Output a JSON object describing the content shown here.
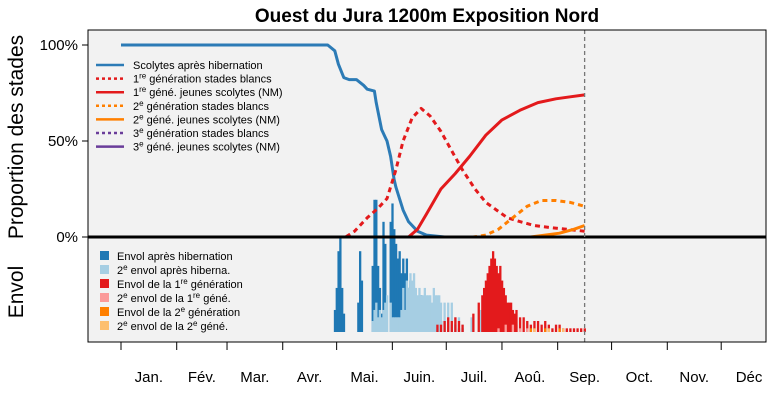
{
  "chart_data": {
    "type": "line",
    "title": "Ouest du Jura 1200m Exposition Nord",
    "ylabel_top": "Proportion des stades",
    "ylabel_bottom": "Envol",
    "yticks": [
      "100%",
      "50%",
      "0%"
    ],
    "ytick_values": [
      100,
      50,
      0
    ],
    "months": [
      "Jan.",
      "Fév.",
      "Mar.",
      "Avr.",
      "Mai.",
      "Juin.",
      "Juil.",
      "Aoû.",
      "Sep.",
      "Oct.",
      "Nov.",
      "Déc"
    ],
    "ylim": [
      0,
      100
    ],
    "xlim_days": [
      0,
      365
    ],
    "current_day": 258,
    "grid": false,
    "legend_top_placement": "top-left",
    "legend_bottom_placement": "bottom-left",
    "legend_lines": [
      {
        "pre": "Scolytes après hibernation",
        "sup": "",
        "post": "",
        "color": "#2c7bb6",
        "dash": "solid"
      },
      {
        "pre": "1",
        "sup": "re",
        "post": " génération stades blancs",
        "color": "#e31a1c",
        "dash": "dotted"
      },
      {
        "pre": "1",
        "sup": "re",
        "post": " géné. jeunes scolytes (NM)",
        "color": "#e31a1c",
        "dash": "solid"
      },
      {
        "pre": "2",
        "sup": "e",
        "post": " génération stades blancs",
        "color": "#ff7f00",
        "dash": "dotted"
      },
      {
        "pre": "2",
        "sup": "e",
        "post": " géné. jeunes scolytes (NM)",
        "color": "#ff7f00",
        "dash": "solid"
      },
      {
        "pre": "3",
        "sup": "e",
        "post": " génération stades blancs",
        "color": "#6a3d9a",
        "dash": "dotted"
      },
      {
        "pre": "3",
        "sup": "e",
        "post": " géné. jeunes scolytes (NM)",
        "color": "#6a3d9a",
        "dash": "solid"
      }
    ],
    "legend_bars": [
      {
        "pre": "Envol après hibernation",
        "sup": "",
        "post": "",
        "color": "#1f78b4"
      },
      {
        "pre": "2",
        "sup": "e",
        "post": " envol après hiberna.",
        "color": "#a6cee3"
      },
      {
        "pre": "Envol de la 1",
        "sup": "re",
        "post": " génération",
        "color": "#e31a1c"
      },
      {
        "pre": "2",
        "sup": "e",
        "post": " envol de la 1",
        "sup2": "re",
        "post2": " géné.",
        "color": "#fb9a99"
      },
      {
        "pre": "Envol de la 2",
        "sup": "e",
        "post": " génération",
        "color": "#ff7f00"
      },
      {
        "pre": "2",
        "sup": "e",
        "post": " envol de la 2",
        "sup2": "e",
        "post2": " géné.",
        "color": "#fdbf6f"
      }
    ],
    "series": [
      {
        "name": "Scolytes après hibernation",
        "color": "#2c7bb6",
        "dash": "solid",
        "x": [
          0,
          115,
          119,
          121,
          124,
          127,
          131,
          135,
          137,
          141,
          142,
          145,
          147,
          148,
          150,
          152,
          153,
          155,
          157,
          160,
          165,
          170,
          180,
          190,
          200
        ],
        "y": [
          100,
          100,
          97,
          90,
          83,
          82,
          82,
          79,
          77,
          76,
          70,
          56,
          52,
          50,
          42,
          30,
          26,
          20,
          14,
          8,
          3,
          1,
          0,
          0,
          0
        ]
      },
      {
        "name": "1re génération stades blancs",
        "color": "#e31a1c",
        "dash": "dotted",
        "x": [
          0,
          125,
          130,
          137,
          143,
          148,
          153,
          157,
          162,
          167,
          172,
          178,
          184,
          190,
          197,
          203,
          209,
          215,
          222,
          230,
          238,
          248,
          258
        ],
        "y": [
          0,
          0,
          3,
          10,
          15,
          20,
          35,
          50,
          62,
          67,
          63,
          55,
          45,
          35,
          25,
          18,
          14,
          10,
          8,
          6,
          5,
          4,
          3
        ]
      },
      {
        "name": "1re géné. jeunes scolytes (NM)",
        "color": "#e31a1c",
        "dash": "solid",
        "x": [
          0,
          160,
          165,
          170,
          178,
          186,
          194,
          203,
          212,
          222,
          232,
          242,
          250,
          258
        ],
        "y": [
          0,
          0,
          4,
          12,
          25,
          33,
          42,
          53,
          61,
          66,
          70,
          72,
          73,
          74
        ]
      },
      {
        "name": "2e génération stades blancs",
        "color": "#ff7f00",
        "dash": "dotted",
        "x": [
          0,
          196,
          203,
          210,
          218,
          226,
          234,
          242,
          250,
          258
        ],
        "y": [
          0,
          0,
          1,
          4,
          10,
          16,
          19,
          19,
          18,
          16
        ]
      },
      {
        "name": "2e géné. jeunes scolytes (NM)",
        "color": "#ff7f00",
        "dash": "solid",
        "x": [
          0,
          228,
          236,
          244,
          252,
          258
        ],
        "y": [
          0,
          0,
          1,
          2,
          4,
          6
        ]
      }
    ],
    "flight_bars": [
      {
        "name": "Envol après hibernation",
        "color": "#1f78b4",
        "x": [
          119,
          120,
          121,
          122,
          123,
          124,
          132,
          133,
          134,
          140,
          141,
          142,
          143,
          144,
          145,
          146,
          147,
          150,
          151,
          152,
          153,
          154,
          155,
          156,
          157,
          158,
          159,
          160,
          161,
          162,
          163,
          164,
          165,
          166,
          167,
          168,
          169,
          170,
          171,
          172,
          173,
          174,
          175,
          176,
          177,
          178,
          180,
          182,
          184,
          186,
          188,
          190
        ],
        "y": [
          6,
          12,
          22,
          26,
          12,
          5,
          8,
          22,
          14,
          18,
          36,
          36,
          18,
          12,
          5,
          30,
          24,
          30,
          35,
          28,
          24,
          20,
          22,
          16,
          20,
          16,
          20,
          12,
          14,
          12,
          12,
          10,
          8,
          8,
          10,
          8,
          6,
          8,
          6,
          6,
          6,
          6,
          5,
          5,
          4,
          3,
          3,
          3,
          2,
          2,
          1,
          1
        ]
      },
      {
        "name": "2e envol après hiberna.",
        "color": "#a6cee3",
        "x": [
          140,
          141,
          142,
          143,
          144,
          145,
          146,
          147,
          148,
          150,
          151,
          152,
          153,
          154,
          155,
          156,
          157,
          158,
          159,
          160,
          161,
          162,
          163,
          164,
          165,
          166,
          167,
          168,
          169,
          170,
          171,
          172,
          173,
          174,
          175,
          176,
          177,
          178,
          180,
          182,
          184,
          186,
          188,
          190,
          195,
          200,
          205,
          210,
          215,
          220
        ],
        "y": [
          3,
          6,
          8,
          4,
          6,
          4,
          6,
          8,
          10,
          8,
          4,
          4,
          4,
          4,
          4,
          6,
          12,
          6,
          14,
          12,
          16,
          14,
          16,
          12,
          10,
          12,
          10,
          10,
          12,
          10,
          10,
          10,
          8,
          12,
          10,
          10,
          10,
          8,
          8,
          8,
          8,
          4,
          4,
          2,
          4,
          6,
          6,
          6,
          4,
          2
        ]
      },
      {
        "name": "Envol de la 1re génération",
        "color": "#e31a1c",
        "x": [
          176,
          178,
          180,
          182,
          184,
          186,
          188,
          190,
          196,
          199,
          201,
          202,
          203,
          204,
          205,
          206,
          207,
          208,
          209,
          210,
          211,
          212,
          213,
          214,
          215,
          216,
          217,
          218,
          219,
          220,
          222,
          224,
          226,
          228,
          230,
          232,
          234,
          236,
          238,
          240,
          242,
          244,
          246,
          248,
          250,
          252,
          254,
          256,
          258
        ],
        "y": [
          2,
          2,
          3,
          4,
          3,
          4,
          3,
          2,
          5,
          8,
          10,
          12,
          14,
          16,
          18,
          20,
          22,
          20,
          18,
          16,
          18,
          14,
          12,
          10,
          8,
          8,
          8,
          6,
          5,
          6,
          4,
          4,
          3,
          2,
          3,
          3,
          2,
          3,
          2,
          1,
          2,
          2,
          1,
          1,
          1,
          1,
          1,
          1,
          1
        ]
      },
      {
        "name": "2e envol de la 1re géné.",
        "color": "#fb9a99",
        "x": [
          210,
          214,
          218,
          222,
          226
        ],
        "y": [
          1,
          2,
          2,
          1,
          1
        ]
      },
      {
        "name": "Envol de la 2e génération",
        "color": "#ff7f00",
        "x": [
          228,
          236,
          244
        ],
        "y": [
          1,
          1,
          1
        ]
      },
      {
        "name": "2e envol de la 2e géné.",
        "color": "#fdbf6f",
        "x": [
          230,
          238,
          246
        ],
        "y": [
          1,
          1,
          1
        ]
      }
    ]
  }
}
